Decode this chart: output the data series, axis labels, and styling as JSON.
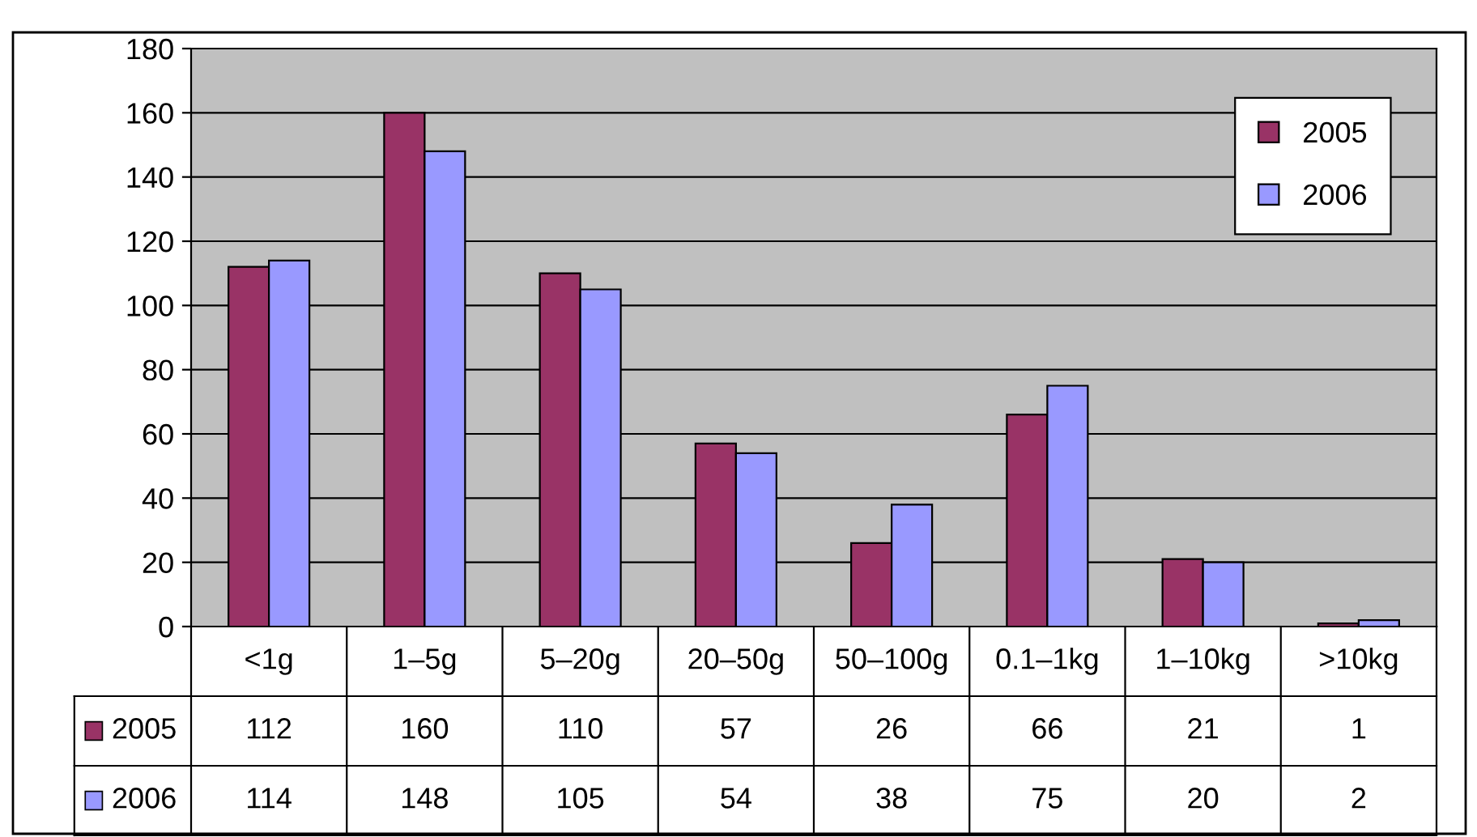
{
  "chart_data": {
    "type": "bar",
    "categories": [
      "<1g",
      "1–5g",
      "5–20g",
      "20–50g",
      "50–100g",
      "0.1–1kg",
      "1–10kg",
      ">10kg"
    ],
    "series": [
      {
        "name": "2005",
        "color": "#993366",
        "values": [
          112,
          160,
          110,
          57,
          26,
          66,
          21,
          1
        ]
      },
      {
        "name": "2006",
        "color": "#9999ff",
        "values": [
          114,
          148,
          105,
          54,
          38,
          75,
          20,
          2
        ]
      }
    ],
    "ylim": [
      0,
      180
    ],
    "yticks": [
      0,
      20,
      40,
      60,
      80,
      100,
      120,
      140,
      160,
      180
    ],
    "grid": "y",
    "legend": "top right",
    "data_labels": true
  }
}
